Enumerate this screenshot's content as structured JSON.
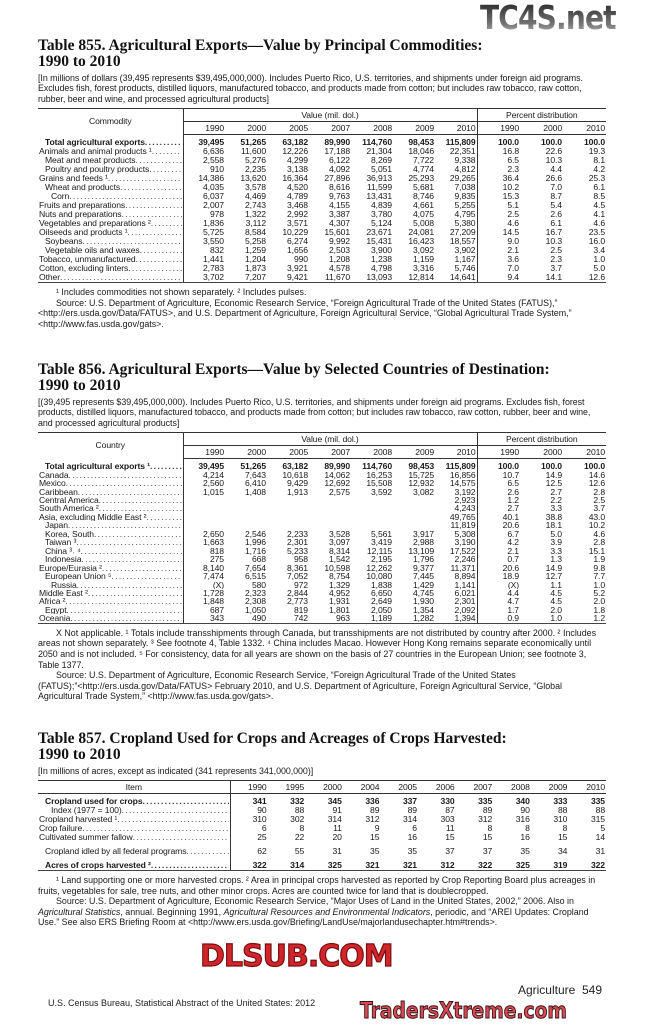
{
  "tables": [
    {
      "title_line1": "Table 855. Agricultural Exports—Value by Principal Commodities:",
      "title_line2": "1990 to 2010",
      "headnote": "[In millions of dollars (39,495 represents $39,495,000,000). Includes Puerto Rico, U.S. territories, and shipments under foreign aid programs. Excludes fish, forest products, distilled liquors, manufactured tobacco, and products made from cotton; but includes raw tobacco, raw cotton, rubber, beer and wine, and processed agricultural products]",
      "stub_header": "Commodity",
      "value_header": "Value (mil. dol.)",
      "pct_header": "Percent distribution",
      "value_years": [
        "1990",
        "2000",
        "2005",
        "2007",
        "2008",
        "2009",
        "2010"
      ],
      "pct_years": [
        "1990",
        "2000",
        "2010"
      ],
      "rows": [
        {
          "label": "Total agricultural exports",
          "indent": 1,
          "bold": true,
          "values": [
            "39,495",
            "51,265",
            "63,182",
            "89,990",
            "114,760",
            "98,453",
            "115,809"
          ],
          "pct": [
            "100.0",
            "100.0",
            "100.0"
          ]
        },
        {
          "label": "Animals and animal products ¹",
          "indent": 0,
          "values": [
            "6,636",
            "11,600",
            "12,226",
            "17,188",
            "21,304",
            "18,046",
            "22,351"
          ],
          "pct": [
            "16.8",
            "22.6",
            "19.3"
          ]
        },
        {
          "label": "Meat and meat products",
          "indent": 1,
          "values": [
            "2,558",
            "5,276",
            "4,299",
            "6,122",
            "8,269",
            "7,722",
            "9,338"
          ],
          "pct": [
            "6.5",
            "10.3",
            "8.1"
          ]
        },
        {
          "label": "Poultry and poultry products",
          "indent": 1,
          "values": [
            "910",
            "2,235",
            "3,138",
            "4,092",
            "5,051",
            "4,774",
            "4,812"
          ],
          "pct": [
            "2.3",
            "4.4",
            "4.2"
          ]
        },
        {
          "label": "Grains and feeds ¹",
          "indent": 0,
          "values": [
            "14,386",
            "13,620",
            "16,364",
            "27,896",
            "36,913",
            "25,293",
            "29,265"
          ],
          "pct": [
            "36.4",
            "26.6",
            "25.3"
          ]
        },
        {
          "label": "Wheat and products",
          "indent": 1,
          "values": [
            "4,035",
            "3,578",
            "4,520",
            "8,616",
            "11,599",
            "5,681",
            "7,038"
          ],
          "pct": [
            "10.2",
            "7.0",
            "6.1"
          ]
        },
        {
          "label": "Corn",
          "indent": 2,
          "values": [
            "6,037",
            "4,469",
            "4,789",
            "9,763",
            "13,431",
            "8,746",
            "9,835"
          ],
          "pct": [
            "15.3",
            "8.7",
            "8.5"
          ]
        },
        {
          "label": "Fruits and preparations",
          "indent": 0,
          "values": [
            "2,007",
            "2,743",
            "3,468",
            "4,155",
            "4,839",
            "4,661",
            "5,255"
          ],
          "pct": [
            "5.1",
            "5.4",
            "4.5"
          ]
        },
        {
          "label": "Nuts and preparations",
          "indent": 0,
          "values": [
            "978",
            "1,322",
            "2,992",
            "3,387",
            "3,780",
            "4,075",
            "4,795"
          ],
          "pct": [
            "2.5",
            "2.6",
            "4.1"
          ]
        },
        {
          "label": "Vegetables and preparations ²",
          "indent": 0,
          "values": [
            "1,836",
            "3,112",
            "3,571",
            "4,307",
            "5,124",
            "5,008",
            "5,380"
          ],
          "pct": [
            "4.6",
            "6.1",
            "4.6"
          ]
        },
        {
          "label": "Oilseeds and products ¹",
          "indent": 0,
          "values": [
            "5,725",
            "8,584",
            "10,229",
            "15,601",
            "23,671",
            "24,081",
            "27,209"
          ],
          "pct": [
            "14.5",
            "16.7",
            "23.5"
          ]
        },
        {
          "label": "Soybeans",
          "indent": 1,
          "values": [
            "3,550",
            "5,258",
            "6,274",
            "9,992",
            "15,431",
            "16,423",
            "18,557"
          ],
          "pct": [
            "9.0",
            "10.3",
            "16.0"
          ]
        },
        {
          "label": "Vegetable oils and waxes",
          "indent": 1,
          "values": [
            "832",
            "1,259",
            "1,656",
            "2,503",
            "3,900",
            "3,092",
            "3,902"
          ],
          "pct": [
            "2.1",
            "2.5",
            "3.4"
          ]
        },
        {
          "label": "Tobacco, unmanufactured",
          "indent": 0,
          "values": [
            "1,441",
            "1,204",
            "990",
            "1,208",
            "1,238",
            "1,159",
            "1,167"
          ],
          "pct": [
            "3.6",
            "2.3",
            "1.0"
          ]
        },
        {
          "label": "Cotton, excluding linters",
          "indent": 0,
          "values": [
            "2,783",
            "1,873",
            "3,921",
            "4,578",
            "4,798",
            "3,316",
            "5,746"
          ],
          "pct": [
            "7.0",
            "3.7",
            "5.0"
          ]
        },
        {
          "label": "Other",
          "indent": 0,
          "values": [
            "3,702",
            "7,207",
            "9,421",
            "11,670",
            "13,093",
            "12,814",
            "14,641"
          ],
          "pct": [
            "9.4",
            "14.1",
            "12.6"
          ]
        }
      ],
      "footnotes": [
        [
          {
            "text": "¹ Includes commodities not shown separately. ² Includes pulses."
          }
        ],
        [
          {
            "text": "Source: U.S. Department of Agriculture, Economic Research Service, “Foreign Agricultural Trade of the United States (FATUS),” <http://ers.usda.gov/Data/FATUS>, and U.S. Department of Agriculture, Foreign Agricultural Service, “Global Agricultural Trade System,” <http://www.fas.usda.gov/gats>."
          }
        ]
      ]
    },
    {
      "title_line1": "Table 856. Agricultural Exports—Value by Selected Countries of Destination:",
      "title_line2": "1990 to 2010",
      "headnote": "[(39,495 represents $39,495,000,000). Includes Puerto Rico, U.S. territories, and shipments under foreign aid programs. Excludes fish, forest products, distilled liquors, manufactured tobacco, and products made from cotton; but includes raw tobacco, raw cotton, rubber, beer and wine, and processed agricultural products]",
      "stub_header": "Country",
      "value_header": "Value (mil. dol.)",
      "pct_header": "Percent distribution",
      "value_years": [
        "1990",
        "2000",
        "2005",
        "2007",
        "2008",
        "2009",
        "2010"
      ],
      "pct_years": [
        "1990",
        "2000",
        "2010"
      ],
      "rows": [
        {
          "label": "Total agricultural exports ¹",
          "indent": 1,
          "bold": true,
          "values": [
            "39,495",
            "51,265",
            "63,182",
            "89,990",
            "114,760",
            "98,453",
            "115,809"
          ],
          "pct": [
            "100.0",
            "100.0",
            "100.0"
          ]
        },
        {
          "label": "Canada",
          "indent": 0,
          "values": [
            "4,214",
            "7,643",
            "10,618",
            "14,062",
            "16,253",
            "15,725",
            "16,856"
          ],
          "pct": [
            "10.7",
            "14.9",
            "14.6"
          ]
        },
        {
          "label": "Mexico",
          "indent": 0,
          "values": [
            "2,560",
            "6,410",
            "9,429",
            "12,692",
            "15,508",
            "12,932",
            "14,575"
          ],
          "pct": [
            "6.5",
            "12.5",
            "12.6"
          ]
        },
        {
          "label": "Caribbean",
          "indent": 0,
          "values": [
            "1,015",
            "1,408",
            "1,913",
            "2,575",
            "3,592",
            "3,082",
            "3,192"
          ],
          "pct": [
            "2.6",
            "2.7",
            "2.8"
          ]
        },
        {
          "label": "Central America",
          "indent": 0,
          "values": [
            "",
            "",
            "",
            "",
            "",
            "",
            "2,923"
          ],
          "pct": [
            "1.2",
            "2.2",
            "2.5"
          ]
        },
        {
          "label": "South America ²",
          "indent": 0,
          "values": [
            "",
            "",
            "",
            "",
            "",
            "",
            "4,243"
          ],
          "pct": [
            "2.7",
            "3.3",
            "3.7"
          ]
        },
        {
          "label": "Asia, excluding Middle East ²",
          "indent": 0,
          "values": [
            "",
            "",
            "",
            "",
            "",
            "",
            "49,765"
          ],
          "pct": [
            "40.1",
            "38.8",
            "43.0"
          ]
        },
        {
          "label": "Japan",
          "indent": 1,
          "values": [
            "",
            "",
            "",
            "",
            "",
            "",
            "11,819"
          ],
          "pct": [
            "20.6",
            "18.1",
            "10.2"
          ]
        },
        {
          "label": "Korea, South",
          "indent": 1,
          "values": [
            "2,650",
            "2,546",
            "2,233",
            "3,528",
            "5,561",
            "3,917",
            "5,308"
          ],
          "pct": [
            "6.7",
            "5.0",
            "4.6"
          ]
        },
        {
          "label": "Taiwan ³",
          "indent": 1,
          "values": [
            "1,663",
            "1,996",
            "2,301",
            "3,097",
            "3,419",
            "2,988",
            "3,190"
          ],
          "pct": [
            "4.2",
            "3.9",
            "2.8"
          ]
        },
        {
          "label": "China ³˒ ⁴",
          "indent": 1,
          "values": [
            "818",
            "1,716",
            "5,233",
            "8,314",
            "12,115",
            "13,109",
            "17,522"
          ],
          "pct": [
            "2.1",
            "3.3",
            "15.1"
          ]
        },
        {
          "label": "Indonesia",
          "indent": 1,
          "values": [
            "275",
            "668",
            "958",
            "1,542",
            "2,195",
            "1,796",
            "2,246"
          ],
          "pct": [
            "0.7",
            "1.3",
            "1.9"
          ]
        },
        {
          "label": "Europe/Eurasia ²",
          "indent": 0,
          "values": [
            "8,140",
            "7,654",
            "8,361",
            "10,598",
            "12,262",
            "9,377",
            "11,371"
          ],
          "pct": [
            "20.6",
            "14.9",
            "9.8"
          ]
        },
        {
          "label": "European Union ⁵",
          "indent": 1,
          "values": [
            "7,474",
            "6,515",
            "7,052",
            "8,754",
            "10,080",
            "7,445",
            "8,894"
          ],
          "pct": [
            "18.9",
            "12.7",
            "7.7"
          ]
        },
        {
          "label": "Russia",
          "indent": 2,
          "values": [
            "(X)",
            "580",
            "972",
            "1,329",
            "1,838",
            "1,429",
            "1,141"
          ],
          "pct": [
            "(X)",
            "1.1",
            "1.0"
          ]
        },
        {
          "label": "Middle East ²",
          "indent": 0,
          "values": [
            "1,728",
            "2,323",
            "2,844",
            "4,952",
            "6,650",
            "4,745",
            "6,021"
          ],
          "pct": [
            "4.4",
            "4.5",
            "5.2"
          ]
        },
        {
          "label": "Africa ²",
          "indent": 0,
          "values": [
            "1,848",
            "2,308",
            "2,773",
            "1,931",
            "2,649",
            "1,930",
            "2,301"
          ],
          "pct": [
            "4.7",
            "4.5",
            "2.0"
          ]
        },
        {
          "label": "Egypt",
          "indent": 1,
          "values": [
            "687",
            "1,050",
            "819",
            "1,801",
            "2,050",
            "1,354",
            "2,092"
          ],
          "pct": [
            "1.7",
            "2.0",
            "1.8"
          ]
        },
        {
          "label": "Oceania",
          "indent": 0,
          "values": [
            "343",
            "490",
            "742",
            "963",
            "1,189",
            "1,282",
            "1,394"
          ],
          "pct": [
            "0.9",
            "1.0",
            "1.2"
          ]
        }
      ],
      "footnotes": [
        [
          {
            "text": "X Not applicable. ¹ Totals include transshipments through Canada, but transshipments are not distributed by country after 2000. ² Includes areas not shown separately. ³ See footnote 4, Table 1332. ⁴ China includes Macao.  However Hong Kong remains separate economically until 2050 and is not included. ⁵ For consistency, data for all years are shown on the basis of 27 countries in the European Union; see footnote 3, Table 1377."
          }
        ],
        [
          {
            "text": "Source: U.S. Department of Agriculture, Economic Research Service, “Foreign Agricultural Trade of the United States (FATUS);”<http://ers.usda.gov/Data/FATUS> February 2010, and U.S. Department of Agriculture, Foreign Agricultural Service, “Global Agricultural Trade System,” <http://www.fas.usda.gov/gats>."
          }
        ]
      ]
    },
    {
      "title_line1": "Table 857. Cropland Used for Crops and Acreages of Crops Harvested:",
      "title_line2": "1990 to 2010",
      "headnote": "[In millions of acres, except as indicated (341 represents 341,000,000)]",
      "stub_header": "Item",
      "value_years": [
        "1990",
        "1995",
        "2000",
        "2004",
        "2005",
        "2006",
        "2007",
        "2008",
        "2009",
        "2010"
      ],
      "rows": [
        {
          "label": "Cropland used for crops",
          "indent": 1,
          "bold": true,
          "values": [
            "341",
            "332",
            "345",
            "336",
            "337",
            "330",
            "335",
            "340",
            "333",
            "335"
          ]
        },
        {
          "label": "Index (1977 = 100)",
          "indent": 2,
          "values": [
            "90",
            "88",
            "91",
            "89",
            "89",
            "87",
            "89",
            "90",
            "88",
            "88"
          ]
        },
        {
          "label": "Cropland harvested ¹",
          "indent": 0,
          "values": [
            "310",
            "302",
            "314",
            "312",
            "314",
            "303",
            "312",
            "316",
            "310",
            "315"
          ]
        },
        {
          "label": "Crop failure",
          "indent": 0,
          "values": [
            "6",
            "8",
            "11",
            "9",
            "6",
            "11",
            "8",
            "8",
            "8",
            "5"
          ]
        },
        {
          "label": "Cultivated summer fallow",
          "indent": 0,
          "values": [
            "25",
            "22",
            "20",
            "15",
            "16",
            "15",
            "15",
            "16",
            "15",
            "14"
          ]
        },
        {
          "label": "Cropland idled by all federal programs",
          "indent": 1,
          "gap": true,
          "values": [
            "62",
            "55",
            "31",
            "35",
            "35",
            "37",
            "37",
            "35",
            "34",
            "31"
          ]
        },
        {
          "label": "Acres of crops harvested ²",
          "indent": 1,
          "bold": true,
          "gap": true,
          "values": [
            "322",
            "314",
            "325",
            "321",
            "321",
            "312",
            "322",
            "325",
            "319",
            "322"
          ]
        }
      ],
      "footnotes": [
        [
          {
            "text": "¹ Land supporting one or more harvested crops. ² Area in principal crops harvested as reported by Crop Reporting Board plus acreages in fruits, vegetables for sale, tree nuts, and other minor crops. Acres are counted twice for land that is doublecropped."
          }
        ],
        [
          {
            "text": "Source: U.S. Department of Agriculture, Economic Research Service, “Major Uses of Land in the United States, 2002,” 2006. Also in "
          },
          {
            "text": "Agricultural Statistics",
            "italic": true
          },
          {
            "text": ", annual. Beginning 1991, "
          },
          {
            "text": "Agricultural Resources and Environmental Indicators",
            "italic": true
          },
          {
            "text": ", periodic, and “AREI Updates: Cropland Use.” See also ERS Briefing Room at <http://www.ers.usda.gov/Briefing/LandUse/majorlandusechapter.htm#trends>."
          }
        ]
      ]
    }
  ],
  "footer": {
    "section": "Agriculture",
    "page": "549",
    "source": "U.S. Census Bureau, Statistical Abstract of the United States: 2012"
  },
  "watermarks": {
    "top": "TC4S.net",
    "middle": "DLSUB.COM",
    "bottom": "TradersXtreme.com"
  },
  "colors": {
    "text": "#1a1a1a",
    "watermark_red": "#d0262b",
    "watermark_gray": "#4a4a4a"
  }
}
